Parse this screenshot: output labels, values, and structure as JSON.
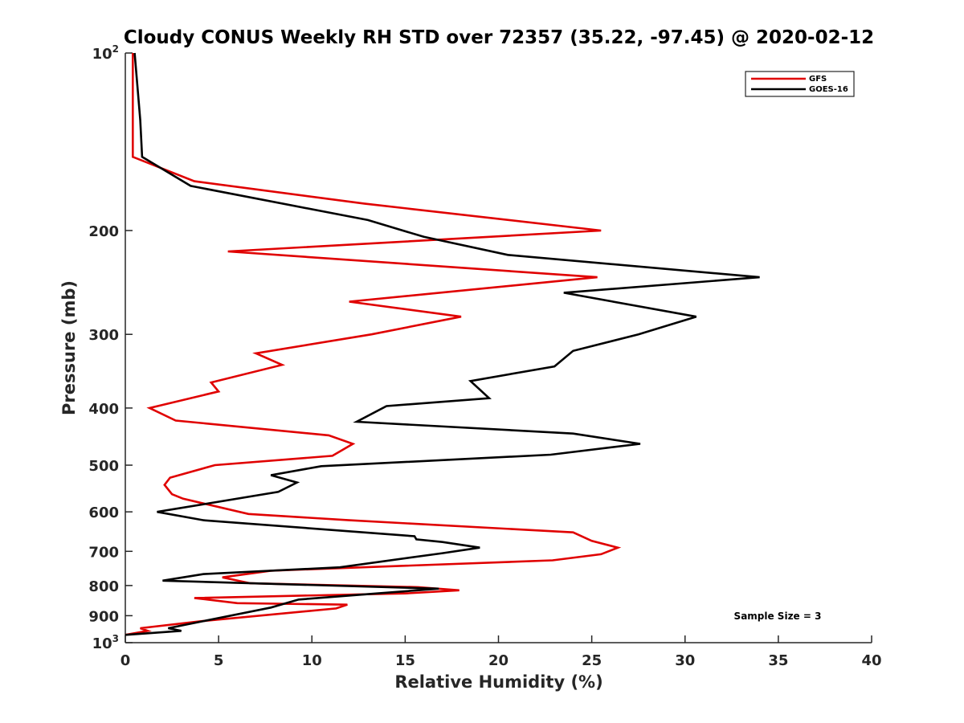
{
  "chart_data": {
    "type": "line",
    "title": "Cloudy CONUS Weekly RH STD over 72357 (35.22, -97.45) @ 2020-02-12",
    "xlabel": "Relative Humidity (%)",
    "ylabel": "Pressure (mb)",
    "xlim": [
      0,
      40
    ],
    "ylim": [
      100,
      1000
    ],
    "y_scale": "log",
    "y_reversed": true,
    "x_ticks": [
      "0",
      "5",
      "10",
      "15",
      "20",
      "25",
      "30",
      "35",
      "40"
    ],
    "y_ticks": [
      {
        "value": 100,
        "base": "10",
        "exp": "2"
      },
      {
        "value": 200,
        "base": "200",
        "exp": ""
      },
      {
        "value": 300,
        "base": "300",
        "exp": ""
      },
      {
        "value": 400,
        "base": "400",
        "exp": ""
      },
      {
        "value": 500,
        "base": "500",
        "exp": ""
      },
      {
        "value": 600,
        "base": "600",
        "exp": ""
      },
      {
        "value": 700,
        "base": "700",
        "exp": ""
      },
      {
        "value": 800,
        "base": "800",
        "exp": ""
      },
      {
        "value": 900,
        "base": "900",
        "exp": ""
      },
      {
        "value": 1000,
        "base": "10",
        "exp": "3"
      }
    ],
    "grid": false,
    "legend_position": "top-right",
    "annotation": "Sample Size = 3",
    "series": [
      {
        "name": "GFS",
        "color": "#e00000",
        "x": [
          0.4,
          0.4,
          3.7,
          12.8,
          25.5,
          5.5,
          25.3,
          12.0,
          18.0,
          13.2,
          7.0,
          8.4,
          4.6,
          5.0,
          1.3,
          2.7,
          10.9,
          12.2,
          11.1,
          4.8,
          2.4,
          2.1,
          2.5,
          3.1,
          6.6,
          12.0,
          24.0,
          25.0,
          26.4,
          25.5,
          22.9,
          7.8,
          5.2,
          6.7,
          15.7,
          17.9,
          15.0,
          3.7,
          6.0,
          11.9,
          11.3,
          4.0,
          0.8,
          1.2,
          0.0
        ],
        "y": [
          100,
          150,
          165,
          180,
          200,
          217,
          240,
          264,
          280,
          300,
          323,
          338,
          362,
          375,
          400,
          420,
          445,
          460,
          482,
          500,
          525,
          540,
          560,
          570,
          605,
          620,
          650,
          672,
          690,
          708,
          725,
          755,
          775,
          793,
          805,
          815,
          825,
          840,
          857,
          862,
          875,
          920,
          945,
          955,
          970
        ]
      },
      {
        "name": "GOES-16",
        "color": "#000000",
        "x": [
          0.5,
          0.8,
          0.9,
          3.5,
          13.0,
          16.0,
          20.5,
          34.0,
          23.5,
          30.6,
          27.5,
          24.0,
          23.0,
          18.5,
          19.5,
          14.0,
          12.4,
          24.0,
          27.6,
          22.8,
          10.5,
          7.8,
          9.2,
          8.2,
          1.7,
          4.2,
          15.5,
          15.6,
          17.0,
          19.0,
          17.0,
          11.5,
          4.2,
          2.0,
          16.8,
          13.5,
          9.3,
          9.0,
          7.8,
          4.5,
          2.3,
          3.0,
          0.0
        ],
        "y": [
          100,
          130,
          150,
          168,
          192,
          205,
          220,
          240,
          255,
          280,
          300,
          320,
          340,
          360,
          385,
          397,
          422,
          442,
          460,
          480,
          502,
          520,
          535,
          555,
          600,
          620,
          660,
          668,
          675,
          690,
          705,
          745,
          765,
          785,
          810,
          825,
          845,
          850,
          872,
          915,
          945,
          955,
          970
        ]
      }
    ]
  }
}
